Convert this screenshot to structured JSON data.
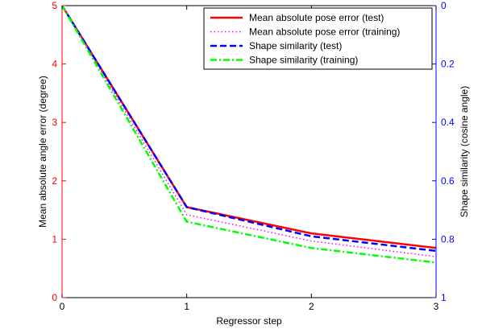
{
  "chart_data": {
    "type": "line",
    "x": [
      0,
      1,
      2,
      3
    ],
    "xlabel": "Regressor step",
    "xlim": [
      0,
      3
    ],
    "xticks": [
      "0",
      "1",
      "2",
      "3"
    ],
    "ylabel_left": "Mean absolute angle error (degree)",
    "ylim_left": [
      0,
      5
    ],
    "yticks_left": [
      "0",
      "1",
      "2",
      "3",
      "4",
      "5"
    ],
    "left_axis_color": "#ff0000",
    "ylabel_right": "Shape similarity (cosine angle)",
    "ylim_right": [
      1,
      0
    ],
    "yticks_right": [
      "0",
      "0.2",
      "0.4",
      "0.6",
      "0.8",
      "1"
    ],
    "right_axis_color": "#0000ff",
    "grid": false,
    "legend_position": "top-right",
    "series": [
      {
        "name": "Mean absolute pose error (test)",
        "axis": "left",
        "values": [
          5.0,
          1.55,
          1.1,
          0.85
        ],
        "color": "#ff0000",
        "dash": "solid"
      },
      {
        "name": "Mean absolute pose error (training)",
        "axis": "left",
        "values": [
          5.0,
          1.42,
          0.97,
          0.7
        ],
        "color": "#ff00ff",
        "dash": "dotted"
      },
      {
        "name": "Shape similarity (test)",
        "axis": "right",
        "values": [
          0.0,
          0.69,
          0.79,
          0.84
        ],
        "color": "#0000ff",
        "dash": "dashed"
      },
      {
        "name": "Shape similarity (training)",
        "axis": "right",
        "values": [
          0.0,
          0.74,
          0.83,
          0.88
        ],
        "color": "#00ff00",
        "dash": "dashdot"
      }
    ]
  }
}
